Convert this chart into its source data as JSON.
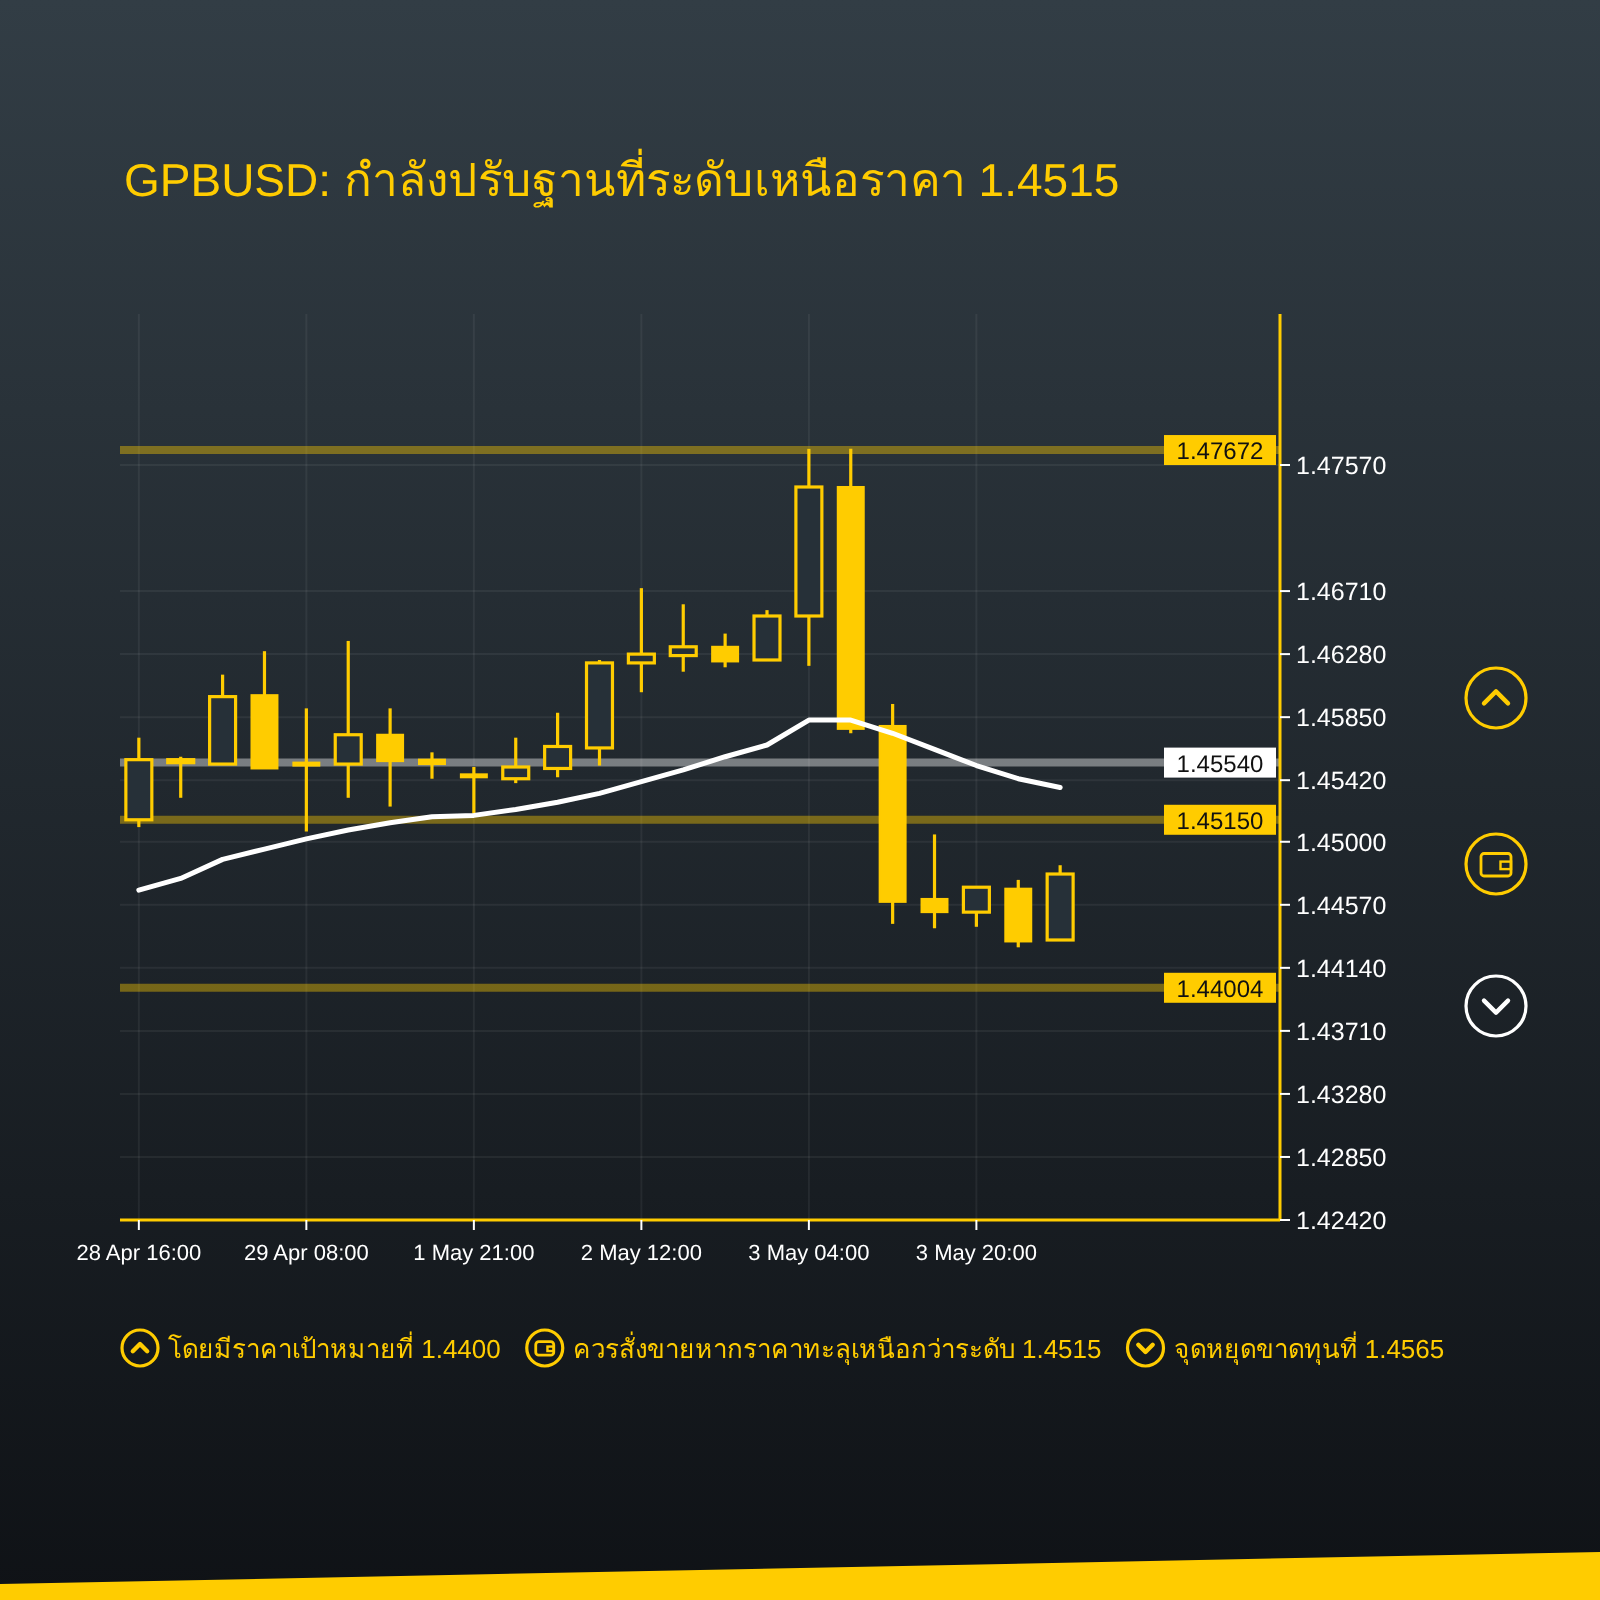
{
  "chart_data": {
    "type": "candlestick",
    "title": "GPBUSD: กำลังปรับฐานที่ระดับเหนือราคา 1.4515",
    "categories": [
      "28 Apr 16:00",
      null,
      null,
      null,
      "29 Apr 08:00",
      null,
      null,
      null,
      "1 May 21:00",
      null,
      null,
      null,
      "2 May 12:00",
      null,
      null,
      null,
      "3 May 04:00",
      null,
      null,
      null,
      "3 May 20:00",
      null,
      null
    ],
    "ohlc": [
      [
        1.4515,
        1.4571,
        1.451,
        1.4556
      ],
      [
        1.4554,
        1.4558,
        1.453,
        1.4556
      ],
      [
        1.4553,
        1.4614,
        1.4553,
        1.4599
      ],
      [
        1.46,
        1.463,
        1.455,
        1.455
      ],
      [
        1.4554,
        1.4591,
        1.4507,
        1.4552
      ],
      [
        1.4553,
        1.4637,
        1.453,
        1.4573
      ],
      [
        1.4573,
        1.4591,
        1.4524,
        1.4555
      ],
      [
        1.4556,
        1.4561,
        1.4543,
        1.4553
      ],
      [
        1.4546,
        1.4551,
        1.4519,
        1.4545
      ],
      [
        1.4543,
        1.4571,
        1.454,
        1.4551
      ],
      [
        1.455,
        1.4588,
        1.4544,
        1.4565
      ],
      [
        1.4564,
        1.4624,
        1.4552,
        1.4622
      ],
      [
        1.4622,
        1.4673,
        1.4602,
        1.4628
      ],
      [
        1.4627,
        1.4662,
        1.4616,
        1.4633
      ],
      [
        1.4633,
        1.4642,
        1.4619,
        1.4623
      ],
      [
        1.4624,
        1.4658,
        1.4624,
        1.4654
      ],
      [
        1.4654,
        1.4768,
        1.462,
        1.4742
      ],
      [
        1.4742,
        1.4768,
        1.4574,
        1.4577
      ],
      [
        1.4579,
        1.4594,
        1.4444,
        1.4459
      ],
      [
        1.4461,
        1.4505,
        1.4441,
        1.4452
      ],
      [
        1.4452,
        1.4469,
        1.4442,
        1.4469
      ],
      [
        1.4468,
        1.4474,
        1.4428,
        1.4432
      ],
      [
        1.4433,
        1.4484,
        1.4433,
        1.4478
      ]
    ],
    "color": "#ffcc00",
    "series": [
      {
        "type": "line",
        "color": "#ffffff",
        "values": [
          1.4467,
          1.4475,
          1.4488,
          1.4495,
          1.4502,
          1.4508,
          1.4513,
          1.4517,
          1.4518,
          1.4522,
          1.4527,
          1.4533,
          1.4541,
          1.4549,
          1.4558,
          1.4566,
          1.4583,
          1.4583,
          1.4574,
          1.4563,
          1.4552,
          1.4543,
          1.4537
        ]
      }
    ],
    "ylim": [
      1.4242,
      1.486
    ],
    "yticks": [
      {
        "value": 1.4242,
        "label": "1.42420"
      },
      {
        "value": 1.4285,
        "label": "1.42850"
      },
      {
        "value": 1.4328,
        "label": "1.43280"
      },
      {
        "value": 1.4371,
        "label": "1.43710"
      },
      {
        "value": 1.4414,
        "label": "1.44140"
      },
      {
        "value": 1.4457,
        "label": "1.44570"
      },
      {
        "value": 1.45,
        "label": "1.45000"
      },
      {
        "value": 1.4542,
        "label": "1.45420"
      },
      {
        "value": 1.4585,
        "label": "1.45850"
      },
      {
        "value": 1.4628,
        "label": "1.46280"
      },
      {
        "value": 1.4671,
        "label": "1.46710"
      },
      {
        "value": 1.4757,
        "label": "1.47570"
      }
    ],
    "ref_lines": [
      {
        "axis": "y",
        "value": 1.47672,
        "label": "1.47672",
        "color": "#ffcc00"
      },
      {
        "axis": "y",
        "value": 1.4554,
        "label": "1.45540",
        "color": "#ffffff"
      },
      {
        "axis": "y",
        "value": 1.4515,
        "label": "1.45150",
        "color": "#ffcc00"
      },
      {
        "axis": "y",
        "value": 1.44004,
        "label": "1.44004",
        "color": "#ffcc00"
      }
    ],
    "grid": true,
    "annotations": [
      "โดยมีราคาเป้าหมายที่ 1.4400",
      "ควรสั่งขายหากราคาทะลุเหนือกว่าระดับ 1.4515",
      "จุดหยุดขาดทุนที่ 1.4565"
    ]
  }
}
